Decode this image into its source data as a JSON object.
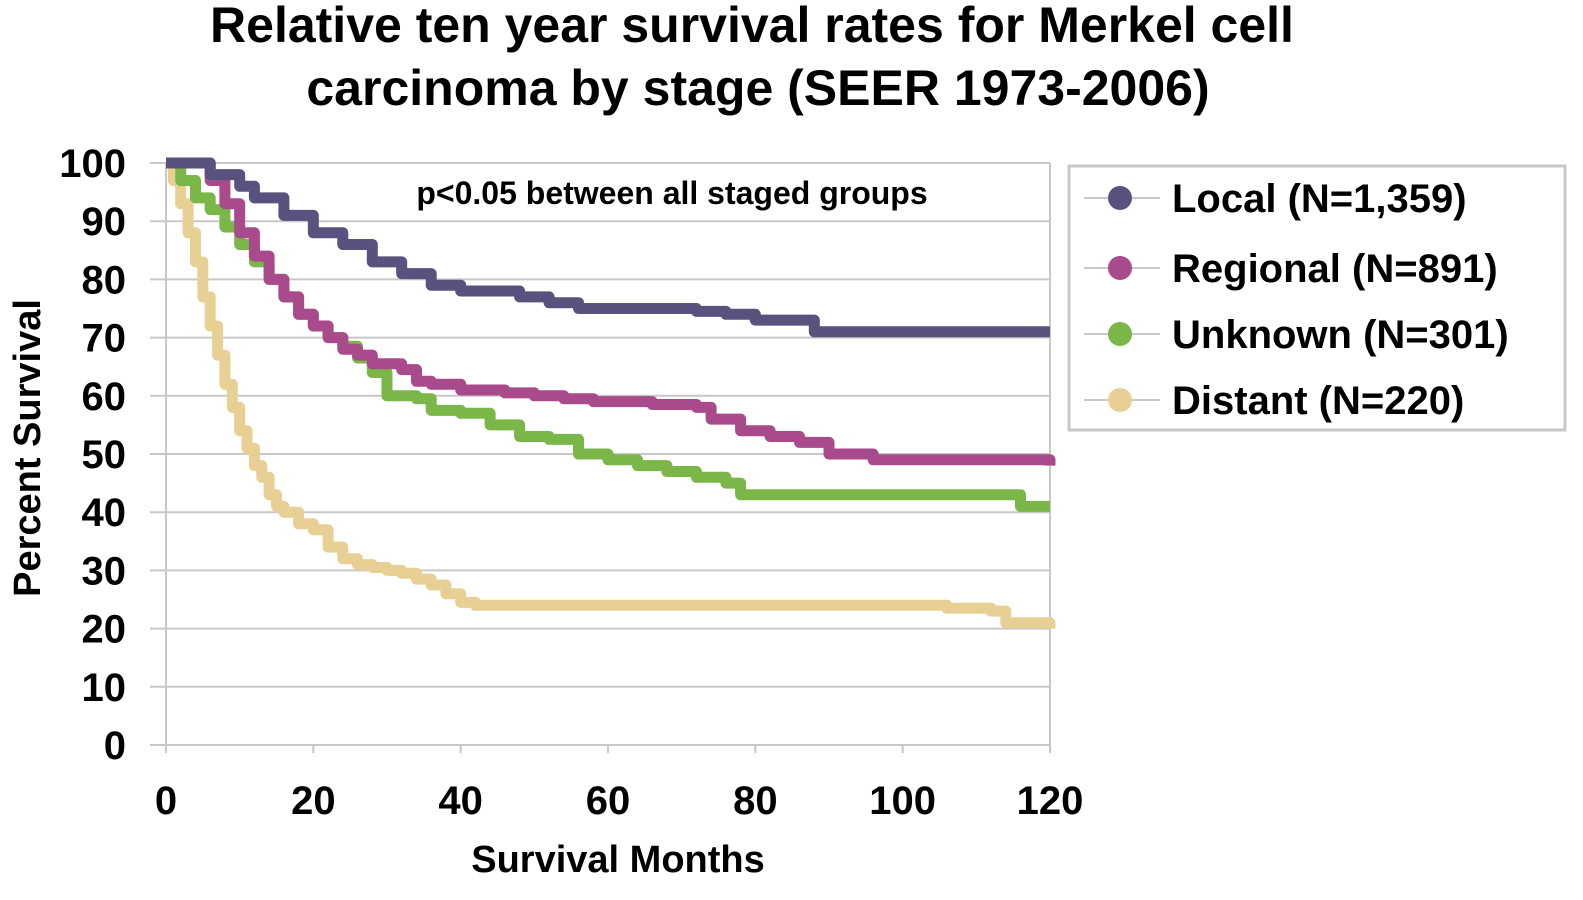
{
  "chart_data": {
    "type": "line",
    "title_lines": [
      "Relative ten year survival rates for Merkel cell",
      "carcinoma by stage (SEER 1973-2006)"
    ],
    "xlabel": "Survival Months",
    "ylabel": "Percent Survival",
    "xlim": [
      0,
      120
    ],
    "ylim": [
      0,
      100
    ],
    "x_ticks": [
      "0",
      "20",
      "40",
      "60",
      "80",
      "100",
      "120"
    ],
    "y_ticks": [
      "0",
      "10",
      "20",
      "30",
      "40",
      "50",
      "60",
      "70",
      "80",
      "90",
      "100"
    ],
    "grid": "horizontal",
    "legend_position": "right",
    "annotation": "p<0.05 between all staged groups",
    "series": [
      {
        "name": "Local (N=1,359)",
        "color": "#57527e",
        "x": [
          0,
          4,
          6,
          10,
          12,
          16,
          20,
          24,
          28,
          32,
          36,
          40,
          44,
          48,
          52,
          56,
          60,
          64,
          68,
          72,
          76,
          80,
          84,
          86,
          88,
          92,
          100,
          110,
          120
        ],
        "y": [
          100,
          100,
          98,
          96,
          94,
          91,
          88,
          86,
          83,
          81,
          79,
          78,
          78,
          77,
          76,
          75,
          75,
          75,
          75,
          74.5,
          74,
          73,
          73,
          73,
          71,
          71,
          71,
          71,
          71
        ]
      },
      {
        "name": "Regional (N=891)",
        "color": "#a84a8b",
        "x": [
          0,
          4,
          6,
          8,
          10,
          12,
          14,
          16,
          18,
          20,
          22,
          24,
          26,
          28,
          30,
          32,
          34,
          36,
          40,
          46,
          50,
          54,
          58,
          62,
          66,
          70,
          72,
          74,
          78,
          82,
          86,
          90,
          96,
          100,
          110,
          120
        ],
        "y": [
          100,
          100,
          97,
          93,
          88,
          84,
          80,
          77,
          74,
          72,
          70,
          68,
          67,
          65.5,
          65.5,
          64.5,
          62.5,
          62,
          61,
          60.5,
          60,
          59.5,
          59,
          59,
          58.5,
          58.5,
          58,
          56,
          54,
          53,
          52,
          50,
          49,
          49,
          49,
          48
        ]
      },
      {
        "name": "Unknown (N=301)",
        "color": "#7ab648",
        "x": [
          0,
          2,
          4,
          6,
          8,
          10,
          12,
          14,
          16,
          18,
          20,
          22,
          24,
          26,
          28,
          30,
          34,
          36,
          40,
          44,
          48,
          52,
          56,
          60,
          64,
          68,
          72,
          76,
          78,
          90,
          100,
          110,
          116,
          120
        ],
        "y": [
          100,
          97,
          94,
          92,
          89,
          86,
          83,
          80,
          77,
          74,
          72,
          70,
          68.5,
          66.5,
          64,
          60,
          59.5,
          57.5,
          57,
          55,
          53,
          52.5,
          50,
          49,
          48,
          47,
          46,
          45,
          43,
          43,
          43,
          43,
          41,
          41
        ]
      },
      {
        "name": "Distant (N=220)",
        "color": "#e8d094",
        "x": [
          0,
          1,
          2,
          3,
          4,
          5,
          6,
          7,
          8,
          9,
          10,
          11,
          12,
          13,
          14,
          15,
          16,
          18,
          20,
          22,
          24,
          26,
          28,
          30,
          32,
          34,
          36,
          38,
          40,
          42,
          60,
          80,
          100,
          106,
          112,
          114,
          120
        ],
        "y": [
          100,
          97,
          93,
          88,
          83,
          77,
          72,
          67,
          62,
          58,
          54,
          51,
          48,
          46,
          43,
          41,
          40,
          38,
          37,
          34,
          32,
          31,
          30.5,
          30,
          29.5,
          28.5,
          27.5,
          26,
          24.5,
          24,
          24,
          24,
          24,
          23.5,
          23,
          21,
          20
        ]
      }
    ]
  }
}
